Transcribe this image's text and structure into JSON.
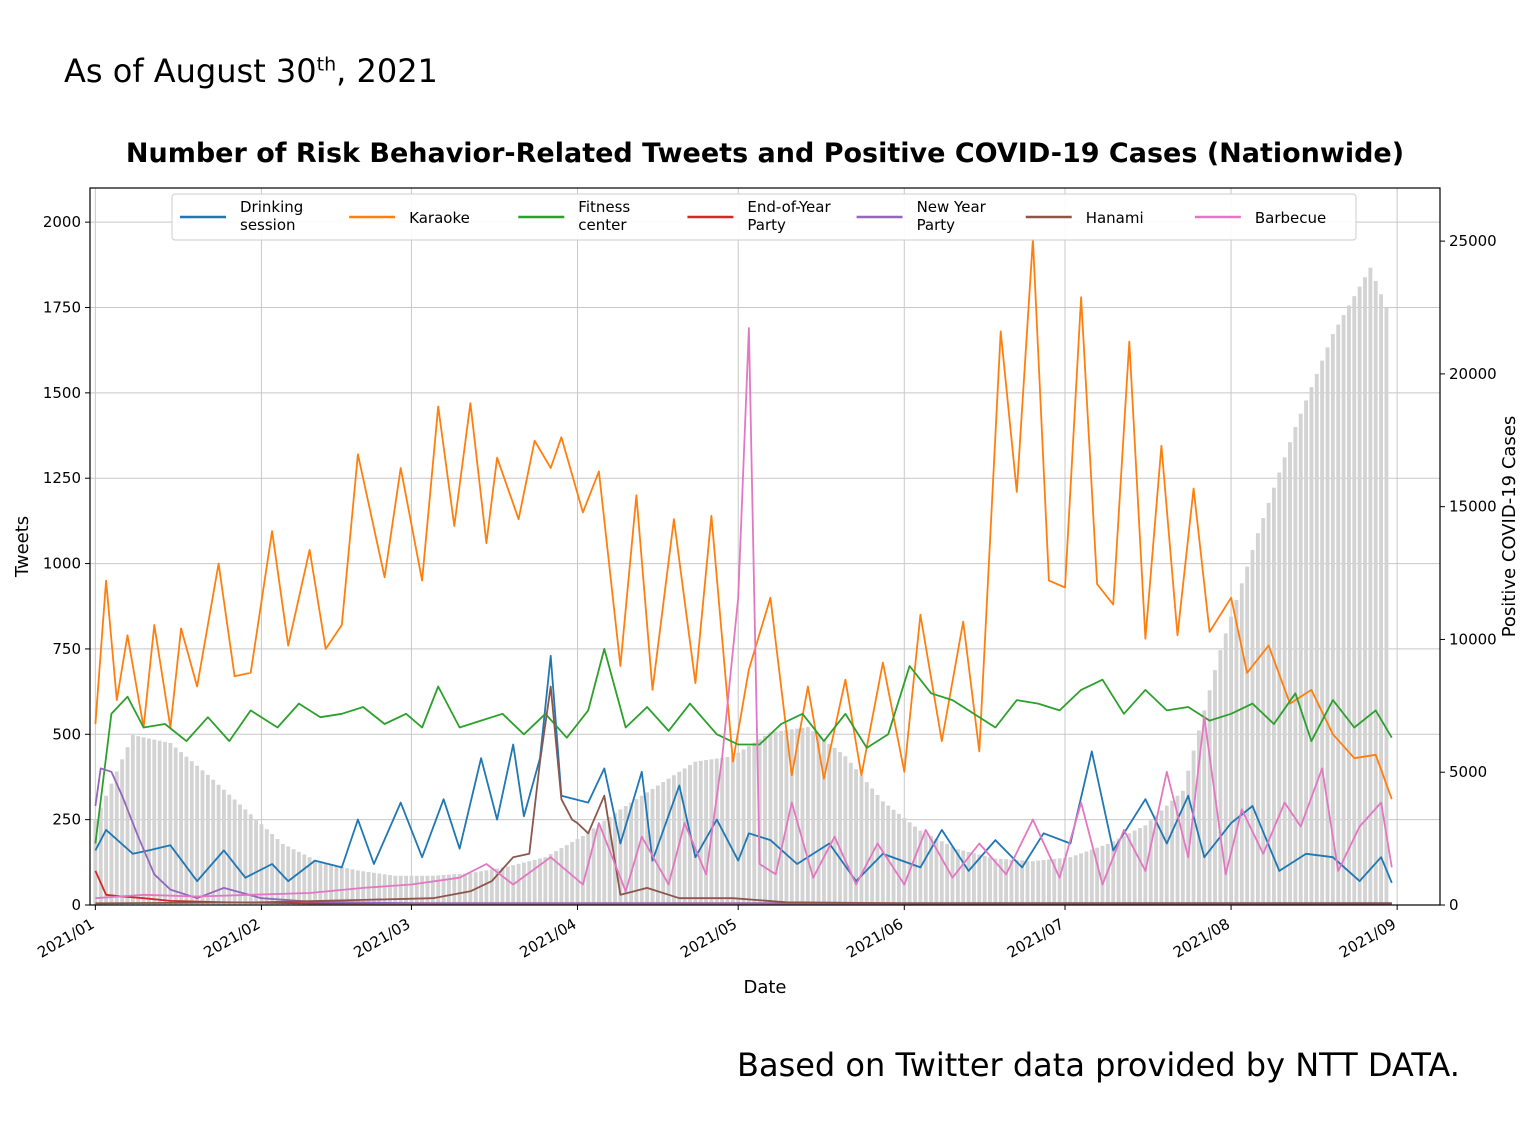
{
  "header": {
    "note_prefix": "As of August 30",
    "note_sup": "th",
    "note_suffix": ", 2021"
  },
  "footer": {
    "source": "Based on Twitter data provided by NTT DATA."
  },
  "chart_data": {
    "type": "line",
    "title": "Number of Risk Behavior-Related Tweets and Positive COVID-19 Cases (Nationwide)",
    "xlabel": "Date",
    "ylabel": "Tweets",
    "ylabel_right": "Positive COVID-19 Cases",
    "xlim": [
      "2020-12-31",
      "2021-09-09"
    ],
    "ylim": [
      0,
      2100
    ],
    "ylim_right": [
      0,
      27000
    ],
    "x_ticks": [
      "2021/01",
      "2021/02",
      "2021/03",
      "2021/04",
      "2021/05",
      "2021/06",
      "2021/07",
      "2021/08",
      "2021/09"
    ],
    "x_tick_dates": [
      "2021-01-01",
      "2021-02-01",
      "2021-03-01",
      "2021-04-01",
      "2021-05-01",
      "2021-06-01",
      "2021-07-01",
      "2021-08-01",
      "2021-09-01"
    ],
    "y_ticks": [
      0,
      250,
      500,
      750,
      1000,
      1250,
      1500,
      1750,
      2000
    ],
    "y_ticks_right": [
      0,
      5000,
      10000,
      15000,
      20000,
      25000
    ],
    "grid": true,
    "legend_position": "top",
    "bars": {
      "name": "Positive COVID-19 Cases",
      "axis": "right",
      "color": "#d3d3d3",
      "x": [
        "2021-01-01",
        "2021-01-08",
        "2021-01-15",
        "2021-01-22",
        "2021-01-29",
        "2021-02-05",
        "2021-02-12",
        "2021-02-19",
        "2021-02-26",
        "2021-03-05",
        "2021-03-12",
        "2021-03-19",
        "2021-03-26",
        "2021-04-02",
        "2021-04-09",
        "2021-04-16",
        "2021-04-23",
        "2021-04-30",
        "2021-05-07",
        "2021-05-14",
        "2021-05-21",
        "2021-05-28",
        "2021-06-04",
        "2021-06-11",
        "2021-06-18",
        "2021-06-25",
        "2021-07-02",
        "2021-07-09",
        "2021-07-16",
        "2021-07-23",
        "2021-07-30",
        "2021-08-06",
        "2021-08-13",
        "2021-08-20",
        "2021-08-27",
        "2021-08-30"
      ],
      "values": [
        3200,
        6400,
        6100,
        4900,
        3600,
        2300,
        1600,
        1300,
        1100,
        1100,
        1200,
        1450,
        1800,
        2600,
        3600,
        4500,
        5400,
        5600,
        6500,
        6700,
        5600,
        3900,
        2800,
        2100,
        1750,
        1650,
        1800,
        2300,
        3000,
        4300,
        9600,
        14000,
        18000,
        21500,
        24000,
        22500
      ]
    },
    "series": [
      {
        "name": "Drinking session",
        "color": "#1f77b4",
        "x": [
          "2021-01-01",
          "2021-01-03",
          "2021-01-08",
          "2021-01-11",
          "2021-01-15",
          "2021-01-20",
          "2021-01-25",
          "2021-01-29",
          "2021-02-03",
          "2021-02-06",
          "2021-02-11",
          "2021-02-16",
          "2021-02-19",
          "2021-02-22",
          "2021-02-27",
          "2021-03-03",
          "2021-03-07",
          "2021-03-10",
          "2021-03-14",
          "2021-03-17",
          "2021-03-20",
          "2021-03-22",
          "2021-03-25",
          "2021-03-27",
          "2021-03-29",
          "2021-04-03",
          "2021-04-06",
          "2021-04-09",
          "2021-04-13",
          "2021-04-15",
          "2021-04-20",
          "2021-04-23",
          "2021-04-27",
          "2021-05-01",
          "2021-05-03",
          "2021-05-07",
          "2021-05-12",
          "2021-05-18",
          "2021-05-23",
          "2021-05-28",
          "2021-06-04",
          "2021-06-08",
          "2021-06-13",
          "2021-06-18",
          "2021-06-23",
          "2021-06-27",
          "2021-07-02",
          "2021-07-06",
          "2021-07-10",
          "2021-07-16",
          "2021-07-20",
          "2021-07-24",
          "2021-07-27",
          "2021-08-01",
          "2021-08-05",
          "2021-08-10",
          "2021-08-15",
          "2021-08-20",
          "2021-08-25",
          "2021-08-29",
          "2021-08-31"
        ],
        "values": [
          160,
          220,
          150,
          160,
          175,
          70,
          160,
          80,
          120,
          70,
          130,
          110,
          250,
          120,
          300,
          140,
          310,
          165,
          430,
          250,
          470,
          260,
          430,
          730,
          320,
          300,
          400,
          180,
          390,
          130,
          350,
          140,
          250,
          130,
          210,
          190,
          120,
          180,
          70,
          150,
          110,
          220,
          100,
          190,
          110,
          210,
          180,
          450,
          160,
          310,
          180,
          320,
          140,
          240,
          290,
          100,
          150,
          140,
          70,
          140,
          65
        ]
      },
      {
        "name": "Karaoke",
        "color": "#ff7f0e",
        "x": [
          "2021-01-01",
          "2021-01-03",
          "2021-01-05",
          "2021-01-07",
          "2021-01-10",
          "2021-01-12",
          "2021-01-15",
          "2021-01-17",
          "2021-01-20",
          "2021-01-24",
          "2021-01-27",
          "2021-01-30",
          "2021-02-03",
          "2021-02-06",
          "2021-02-10",
          "2021-02-13",
          "2021-02-16",
          "2021-02-19",
          "2021-02-24",
          "2021-02-27",
          "2021-03-03",
          "2021-03-06",
          "2021-03-09",
          "2021-03-12",
          "2021-03-15",
          "2021-03-17",
          "2021-03-21",
          "2021-03-24",
          "2021-03-27",
          "2021-03-29",
          "2021-04-02",
          "2021-04-05",
          "2021-04-09",
          "2021-04-12",
          "2021-04-15",
          "2021-04-19",
          "2021-04-23",
          "2021-04-26",
          "2021-04-30",
          "2021-05-03",
          "2021-05-07",
          "2021-05-11",
          "2021-05-14",
          "2021-05-17",
          "2021-05-21",
          "2021-05-24",
          "2021-05-28",
          "2021-06-01",
          "2021-06-04",
          "2021-06-08",
          "2021-06-12",
          "2021-06-15",
          "2021-06-19",
          "2021-06-22",
          "2021-06-25",
          "2021-06-28",
          "2021-07-01",
          "2021-07-04",
          "2021-07-07",
          "2021-07-10",
          "2021-07-13",
          "2021-07-16",
          "2021-07-19",
          "2021-07-22",
          "2021-07-25",
          "2021-07-28",
          "2021-08-01",
          "2021-08-04",
          "2021-08-08",
          "2021-08-12",
          "2021-08-16",
          "2021-08-20",
          "2021-08-24",
          "2021-08-28",
          "2021-08-31"
        ],
        "values": [
          530,
          950,
          600,
          790,
          520,
          820,
          520,
          810,
          640,
          1000,
          670,
          680,
          1095,
          760,
          1040,
          750,
          820,
          1320,
          960,
          1280,
          950,
          1460,
          1110,
          1470,
          1060,
          1310,
          1130,
          1360,
          1280,
          1370,
          1150,
          1270,
          700,
          1200,
          630,
          1130,
          650,
          1140,
          420,
          690,
          900,
          380,
          640,
          370,
          660,
          380,
          710,
          390,
          850,
          480,
          830,
          450,
          1680,
          1210,
          1950,
          950,
          930,
          1780,
          940,
          880,
          1650,
          780,
          1345,
          790,
          1220,
          800,
          900,
          680,
          760,
          590,
          630,
          500,
          430,
          440,
          310
        ]
      },
      {
        "name": "Fitness center",
        "color": "#2ca02c",
        "x": [
          "2021-01-01",
          "2021-01-04",
          "2021-01-07",
          "2021-01-10",
          "2021-01-14",
          "2021-01-18",
          "2021-01-22",
          "2021-01-26",
          "2021-01-30",
          "2021-02-04",
          "2021-02-08",
          "2021-02-12",
          "2021-02-16",
          "2021-02-20",
          "2021-02-24",
          "2021-02-28",
          "2021-03-03",
          "2021-03-06",
          "2021-03-10",
          "2021-03-14",
          "2021-03-18",
          "2021-03-22",
          "2021-03-26",
          "2021-03-30",
          "2021-04-03",
          "2021-04-06",
          "2021-04-10",
          "2021-04-14",
          "2021-04-18",
          "2021-04-22",
          "2021-04-27",
          "2021-05-01",
          "2021-05-05",
          "2021-05-09",
          "2021-05-13",
          "2021-05-17",
          "2021-05-21",
          "2021-05-25",
          "2021-05-29",
          "2021-06-02",
          "2021-06-06",
          "2021-06-10",
          "2021-06-14",
          "2021-06-18",
          "2021-06-22",
          "2021-06-26",
          "2021-06-30",
          "2021-07-04",
          "2021-07-08",
          "2021-07-12",
          "2021-07-16",
          "2021-07-20",
          "2021-07-24",
          "2021-07-28",
          "2021-08-01",
          "2021-08-05",
          "2021-08-09",
          "2021-08-13",
          "2021-08-16",
          "2021-08-20",
          "2021-08-24",
          "2021-08-28",
          "2021-08-31"
        ],
        "values": [
          180,
          560,
          610,
          520,
          530,
          480,
          550,
          480,
          570,
          520,
          590,
          550,
          560,
          580,
          530,
          560,
          520,
          640,
          520,
          540,
          560,
          500,
          560,
          490,
          570,
          750,
          520,
          580,
          510,
          590,
          500,
          470,
          470,
          530,
          560,
          480,
          560,
          460,
          500,
          700,
          620,
          600,
          560,
          520,
          600,
          590,
          570,
          630,
          660,
          560,
          630,
          570,
          580,
          540,
          560,
          590,
          530,
          620,
          480,
          600,
          520,
          570,
          490
        ]
      },
      {
        "name": "End-of-Year Party",
        "color": "#d62728",
        "x": [
          "2021-01-01",
          "2021-01-03",
          "2021-01-06",
          "2021-01-10",
          "2021-01-15",
          "2021-01-25",
          "2021-02-10",
          "2021-03-01",
          "2021-04-01",
          "2021-05-01",
          "2021-06-01",
          "2021-07-01",
          "2021-08-01",
          "2021-08-31"
        ],
        "values": [
          100,
          30,
          25,
          20,
          12,
          8,
          5,
          5,
          5,
          5,
          5,
          5,
          5,
          5
        ]
      },
      {
        "name": "New Year Party",
        "color": "#9467bd",
        "x": [
          "2021-01-01",
          "2021-01-02",
          "2021-01-04",
          "2021-01-06",
          "2021-01-09",
          "2021-01-12",
          "2021-01-15",
          "2021-01-20",
          "2021-01-25",
          "2021-02-01",
          "2021-02-10",
          "2021-03-01",
          "2021-04-01",
          "2021-05-01",
          "2021-06-01",
          "2021-07-01",
          "2021-08-01",
          "2021-08-31"
        ],
        "values": [
          290,
          400,
          390,
          320,
          200,
          90,
          45,
          20,
          50,
          20,
          10,
          5,
          5,
          5,
          5,
          5,
          5,
          5
        ]
      },
      {
        "name": "Hanami",
        "color": "#8c564b",
        "x": [
          "2021-01-01",
          "2021-02-01",
          "2021-02-20",
          "2021-03-05",
          "2021-03-12",
          "2021-03-16",
          "2021-03-20",
          "2021-03-23",
          "2021-03-25",
          "2021-03-27",
          "2021-03-29",
          "2021-03-31",
          "2021-04-01",
          "2021-04-03",
          "2021-04-06",
          "2021-04-09",
          "2021-04-14",
          "2021-04-20",
          "2021-04-30",
          "2021-05-10",
          "2021-06-01",
          "2021-07-01",
          "2021-08-01",
          "2021-08-31"
        ],
        "values": [
          5,
          8,
          15,
          20,
          40,
          70,
          140,
          150,
          420,
          640,
          310,
          250,
          240,
          210,
          320,
          30,
          50,
          20,
          20,
          8,
          5,
          5,
          5,
          5
        ]
      },
      {
        "name": "Barbecue",
        "color": "#e377c2",
        "x": [
          "2021-01-01",
          "2021-01-10",
          "2021-01-20",
          "2021-01-30",
          "2021-02-10",
          "2021-02-20",
          "2021-03-01",
          "2021-03-10",
          "2021-03-15",
          "2021-03-20",
          "2021-03-27",
          "2021-04-02",
          "2021-04-05",
          "2021-04-10",
          "2021-04-13",
          "2021-04-18",
          "2021-04-21",
          "2021-04-25",
          "2021-04-28",
          "2021-05-01",
          "2021-05-03",
          "2021-05-05",
          "2021-05-08",
          "2021-05-11",
          "2021-05-15",
          "2021-05-19",
          "2021-05-23",
          "2021-05-27",
          "2021-06-01",
          "2021-06-05",
          "2021-06-10",
          "2021-06-15",
          "2021-06-20",
          "2021-06-25",
          "2021-06-30",
          "2021-07-04",
          "2021-07-08",
          "2021-07-12",
          "2021-07-16",
          "2021-07-20",
          "2021-07-24",
          "2021-07-27",
          "2021-07-31",
          "2021-08-03",
          "2021-08-07",
          "2021-08-11",
          "2021-08-14",
          "2021-08-18",
          "2021-08-21",
          "2021-08-25",
          "2021-08-29",
          "2021-08-31"
        ],
        "values": [
          20,
          30,
          25,
          30,
          35,
          50,
          60,
          80,
          120,
          60,
          140,
          60,
          240,
          40,
          200,
          60,
          240,
          90,
          430,
          900,
          1690,
          120,
          90,
          300,
          80,
          200,
          60,
          180,
          60,
          220,
          80,
          180,
          90,
          250,
          80,
          300,
          60,
          220,
          100,
          390,
          140,
          550,
          90,
          280,
          150,
          300,
          230,
          400,
          100,
          230,
          300,
          110
        ]
      }
    ]
  }
}
